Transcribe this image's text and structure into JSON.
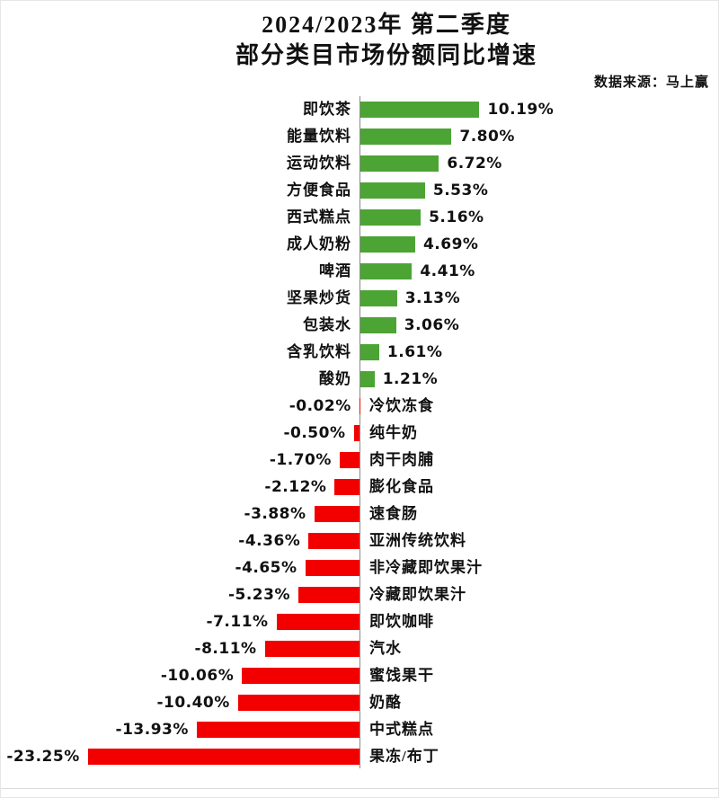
{
  "chart_data": {
    "type": "bar",
    "orientation": "horizontal",
    "title_lines": [
      "2024/2023年 第二季度",
      "部分类目市场份额同比增速"
    ],
    "source": "数据来源：马上赢",
    "categories": [
      "即饮茶",
      "能量饮料",
      "运动饮料",
      "方便食品",
      "西式糕点",
      "成人奶粉",
      "啤酒",
      "坚果炒货",
      "包装水",
      "含乳饮料",
      "酸奶",
      "冷饮冻食",
      "纯牛奶",
      "肉干肉脯",
      "膨化食品",
      "速食肠",
      "亚洲传统饮料",
      "非冷藏即饮果汁",
      "冷藏即饮果汁",
      "即饮咖啡",
      "汽水",
      "蜜饯果干",
      "奶酪",
      "中式糕点",
      "果冻/布丁"
    ],
    "values": [
      10.19,
      7.8,
      6.72,
      5.53,
      5.16,
      4.69,
      4.41,
      3.13,
      3.06,
      1.61,
      1.21,
      -0.02,
      -0.5,
      -1.7,
      -2.12,
      -3.88,
      -4.36,
      -4.65,
      -5.23,
      -7.11,
      -8.11,
      -10.06,
      -10.4,
      -13.93,
      -23.25
    ],
    "labels": [
      "10.19%",
      "7.80%",
      "6.72%",
      "5.53%",
      "5.16%",
      "4.69%",
      "4.41%",
      "3.13%",
      "3.06%",
      "1.61%",
      "1.21%",
      "-0.02%",
      "-0.50%",
      "-1.70%",
      "-2.12%",
      "-3.88%",
      "-4.36%",
      "-4.65%",
      "-5.23%",
      "-7.11%",
      "-8.11%",
      "-10.06%",
      "-10.40%",
      "-13.93%",
      "-23.25%"
    ],
    "positive_color": "#4CA434",
    "negative_color": "#F20000",
    "axis_color": "#8A8A8A",
    "text_color": "#111111",
    "xlim": [
      -23.25,
      10.19
    ],
    "value_format": "percent",
    "grid": false,
    "legend": false
  }
}
